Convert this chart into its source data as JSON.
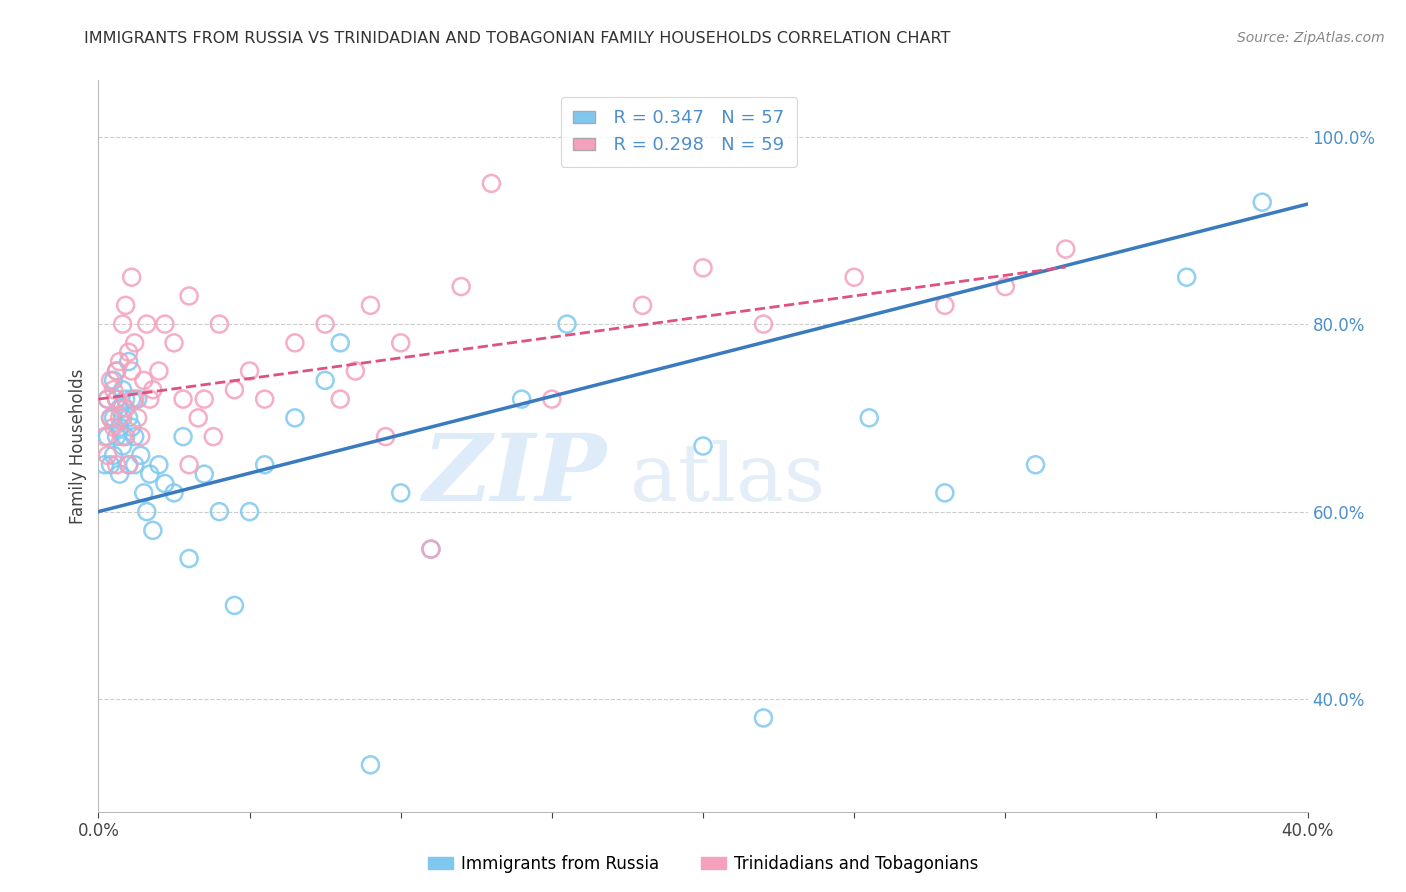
{
  "title": "IMMIGRANTS FROM RUSSIA VS TRINIDADIAN AND TOBAGONIAN FAMILY HOUSEHOLDS CORRELATION CHART",
  "source": "Source: ZipAtlas.com",
  "ylabel": "Family Households",
  "xlim": [
    0.0,
    0.4
  ],
  "ylim": [
    0.28,
    1.06
  ],
  "yticks_right": [
    0.4,
    0.6,
    0.8,
    1.0
  ],
  "ytick_right_labels": [
    "40.0%",
    "60.0%",
    "80.0%",
    "100.0%"
  ],
  "legend_r1": "R = 0.347",
  "legend_n1": "N = 57",
  "legend_r2": "R = 0.298",
  "legend_n2": "N = 59",
  "label1": "Immigrants from Russia",
  "label2": "Trinidadians and Tobagonians",
  "color1": "#7ec8f0",
  "color2": "#f5a0bc",
  "trendline1_color": "#3a7abf",
  "trendline2_color": "#e05080",
  "background_color": "#ffffff",
  "russia_x": [
    0.002,
    0.003,
    0.003,
    0.004,
    0.004,
    0.005,
    0.005,
    0.005,
    0.006,
    0.006,
    0.006,
    0.007,
    0.007,
    0.007,
    0.008,
    0.008,
    0.008,
    0.009,
    0.009,
    0.01,
    0.01,
    0.01,
    0.011,
    0.011,
    0.012,
    0.012,
    0.013,
    0.014,
    0.015,
    0.016,
    0.017,
    0.018,
    0.02,
    0.022,
    0.025,
    0.028,
    0.03,
    0.035,
    0.04,
    0.045,
    0.05,
    0.055,
    0.065,
    0.075,
    0.08,
    0.09,
    0.1,
    0.11,
    0.14,
    0.155,
    0.2,
    0.22,
    0.255,
    0.28,
    0.31,
    0.36,
    0.385
  ],
  "russia_y": [
    0.65,
    0.68,
    0.72,
    0.7,
    0.65,
    0.66,
    0.7,
    0.74,
    0.68,
    0.72,
    0.75,
    0.69,
    0.71,
    0.64,
    0.7,
    0.73,
    0.67,
    0.72,
    0.68,
    0.65,
    0.7,
    0.76,
    0.69,
    0.72,
    0.65,
    0.68,
    0.72,
    0.66,
    0.62,
    0.6,
    0.64,
    0.58,
    0.65,
    0.63,
    0.62,
    0.68,
    0.55,
    0.64,
    0.6,
    0.5,
    0.6,
    0.65,
    0.7,
    0.74,
    0.78,
    0.33,
    0.62,
    0.56,
    0.72,
    0.8,
    0.67,
    0.38,
    0.7,
    0.62,
    0.65,
    0.85,
    0.93
  ],
  "tt_x": [
    0.002,
    0.003,
    0.003,
    0.004,
    0.004,
    0.005,
    0.005,
    0.006,
    0.006,
    0.006,
    0.007,
    0.007,
    0.008,
    0.008,
    0.009,
    0.009,
    0.01,
    0.01,
    0.011,
    0.011,
    0.012,
    0.012,
    0.013,
    0.014,
    0.015,
    0.016,
    0.017,
    0.018,
    0.02,
    0.022,
    0.025,
    0.028,
    0.03,
    0.03,
    0.033,
    0.035,
    0.038,
    0.04,
    0.045,
    0.05,
    0.055,
    0.065,
    0.075,
    0.08,
    0.085,
    0.09,
    0.095,
    0.1,
    0.11,
    0.12,
    0.13,
    0.15,
    0.18,
    0.2,
    0.22,
    0.25,
    0.28,
    0.3,
    0.32
  ],
  "tt_y": [
    0.68,
    0.72,
    0.66,
    0.7,
    0.74,
    0.73,
    0.69,
    0.72,
    0.65,
    0.75,
    0.7,
    0.76,
    0.68,
    0.8,
    0.82,
    0.71,
    0.77,
    0.65,
    0.85,
    0.75,
    0.78,
    0.72,
    0.7,
    0.68,
    0.74,
    0.8,
    0.72,
    0.73,
    0.75,
    0.8,
    0.78,
    0.72,
    0.65,
    0.83,
    0.7,
    0.72,
    0.68,
    0.8,
    0.73,
    0.75,
    0.72,
    0.78,
    0.8,
    0.72,
    0.75,
    0.82,
    0.68,
    0.78,
    0.56,
    0.84,
    0.95,
    0.72,
    0.82,
    0.86,
    0.8,
    0.85,
    0.82,
    0.84,
    0.88
  ]
}
